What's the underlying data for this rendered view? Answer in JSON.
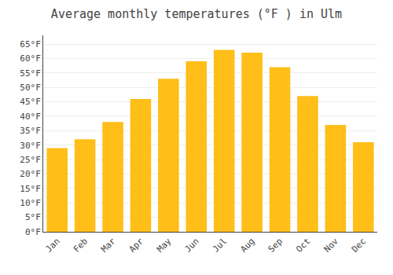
{
  "chart_data": {
    "type": "bar",
    "title": "Average monthly temperatures (°F ) in Ulm",
    "categories": [
      "Jan",
      "Feb",
      "Mar",
      "Apr",
      "May",
      "Jun",
      "Jul",
      "Aug",
      "Sep",
      "Oct",
      "Nov",
      "Dec"
    ],
    "values": [
      29,
      32,
      38,
      46,
      53,
      59,
      63,
      62,
      57,
      47,
      37,
      31
    ],
    "color": "#FFBE18",
    "ylim": [
      0,
      68
    ],
    "yticks": [
      {
        "value": 0,
        "label": "0°F"
      },
      {
        "value": 5,
        "label": "5°F"
      },
      {
        "value": 10,
        "label": "10°F"
      },
      {
        "value": 15,
        "label": "15°F"
      },
      {
        "value": 20,
        "label": "20°F"
      },
      {
        "value": 25,
        "label": "25°F"
      },
      {
        "value": 30,
        "label": "30°F"
      },
      {
        "value": 35,
        "label": "35°F"
      },
      {
        "value": 40,
        "label": "40°F"
      },
      {
        "value": 45,
        "label": "45°F"
      },
      {
        "value": 50,
        "label": "50°F"
      },
      {
        "value": 55,
        "label": "55°F"
      },
      {
        "value": 60,
        "label": "60°F"
      },
      {
        "value": 65,
        "label": "65°F"
      }
    ],
    "grid": true
  }
}
